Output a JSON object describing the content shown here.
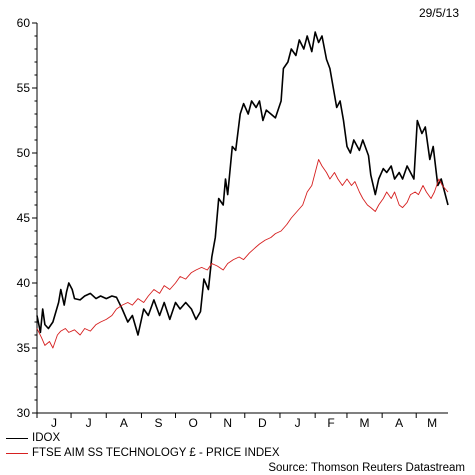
{
  "date_stamp": "29/5/13",
  "source": "Source: Thomson Reuters Datastream",
  "colors": {
    "idox": "#000000",
    "ftse": "#d62020",
    "axis": "#000000"
  },
  "chart_data": {
    "type": "line",
    "title": "",
    "xlabel": "",
    "ylabel": "",
    "x_range": [
      "2012-06-01",
      "2013-05-29"
    ],
    "ylim": [
      30,
      60
    ],
    "y_ticks": [
      30,
      35,
      40,
      45,
      50,
      55,
      60
    ],
    "y_tick_labels": [
      "30",
      "35",
      "40",
      "45",
      "50",
      "55",
      "60"
    ],
    "month_labels": [
      "J",
      "J",
      "A",
      "S",
      "O",
      "N",
      "D",
      "J",
      "F",
      "M",
      "A",
      "M"
    ],
    "grid": false,
    "legend_position": "bottom-left",
    "series": [
      {
        "name": "IDOX",
        "color": "#000000",
        "points": [
          [
            "2012-06-01",
            37.5
          ],
          [
            "2012-06-04",
            36.2
          ],
          [
            "2012-06-06",
            38.0
          ],
          [
            "2012-06-08",
            36.8
          ],
          [
            "2012-06-11",
            36.5
          ],
          [
            "2012-06-15",
            37.0
          ],
          [
            "2012-06-20",
            38.5
          ],
          [
            "2012-06-22",
            39.5
          ],
          [
            "2012-06-25",
            38.3
          ],
          [
            "2012-06-27",
            39.3
          ],
          [
            "2012-06-29",
            40.0
          ],
          [
            "2012-07-02",
            39.5
          ],
          [
            "2012-07-04",
            38.8
          ],
          [
            "2012-07-09",
            38.7
          ],
          [
            "2012-07-13",
            39.0
          ],
          [
            "2012-07-18",
            39.2
          ],
          [
            "2012-07-23",
            38.8
          ],
          [
            "2012-07-27",
            39.0
          ],
          [
            "2012-08-01",
            38.8
          ],
          [
            "2012-08-06",
            39.0
          ],
          [
            "2012-08-10",
            38.9
          ],
          [
            "2012-08-15",
            38.0
          ],
          [
            "2012-08-20",
            37.0
          ],
          [
            "2012-08-24",
            37.5
          ],
          [
            "2012-08-29",
            36.0
          ],
          [
            "2012-09-03",
            38.0
          ],
          [
            "2012-09-07",
            37.5
          ],
          [
            "2012-09-12",
            38.7
          ],
          [
            "2012-09-17",
            37.5
          ],
          [
            "2012-09-21",
            38.5
          ],
          [
            "2012-09-26",
            37.2
          ],
          [
            "2012-10-01",
            38.5
          ],
          [
            "2012-10-05",
            38.0
          ],
          [
            "2012-10-10",
            38.5
          ],
          [
            "2012-10-15",
            38.0
          ],
          [
            "2012-10-19",
            37.2
          ],
          [
            "2012-10-23",
            37.8
          ],
          [
            "2012-10-26",
            40.3
          ],
          [
            "2012-10-30",
            39.5
          ],
          [
            "2012-11-02",
            42.0
          ],
          [
            "2012-11-05",
            43.5
          ],
          [
            "2012-11-08",
            46.5
          ],
          [
            "2012-11-12",
            46.0
          ],
          [
            "2012-11-14",
            48.0
          ],
          [
            "2012-11-16",
            46.8
          ],
          [
            "2012-11-20",
            50.5
          ],
          [
            "2012-11-23",
            50.2
          ],
          [
            "2012-11-27",
            53.0
          ],
          [
            "2012-11-30",
            53.8
          ],
          [
            "2012-12-04",
            53.0
          ],
          [
            "2012-12-07",
            54.0
          ],
          [
            "2012-12-11",
            53.5
          ],
          [
            "2012-12-14",
            54.0
          ],
          [
            "2012-12-17",
            52.5
          ],
          [
            "2012-12-20",
            53.3
          ],
          [
            "2012-12-24",
            53.0
          ],
          [
            "2012-12-28",
            52.7
          ],
          [
            "2013-01-02",
            54.0
          ],
          [
            "2013-01-04",
            56.5
          ],
          [
            "2013-01-08",
            57.0
          ],
          [
            "2013-01-11",
            58.0
          ],
          [
            "2013-01-15",
            57.5
          ],
          [
            "2013-01-18",
            58.7
          ],
          [
            "2013-01-22",
            58.0
          ],
          [
            "2013-01-25",
            59.0
          ],
          [
            "2013-01-29",
            57.8
          ],
          [
            "2013-02-01",
            59.3
          ],
          [
            "2013-02-04",
            58.5
          ],
          [
            "2013-02-07",
            59.0
          ],
          [
            "2013-02-11",
            57.2
          ],
          [
            "2013-02-14",
            56.5
          ],
          [
            "2013-02-17",
            55.0
          ],
          [
            "2013-02-20",
            53.5
          ],
          [
            "2013-02-23",
            54.0
          ],
          [
            "2013-02-26",
            52.5
          ],
          [
            "2013-03-01",
            50.5
          ],
          [
            "2013-03-04",
            50.0
          ],
          [
            "2013-03-07",
            51.0
          ],
          [
            "2013-03-12",
            50.2
          ],
          [
            "2013-03-15",
            51.0
          ],
          [
            "2013-03-20",
            49.8
          ],
          [
            "2013-03-22",
            48.3
          ],
          [
            "2013-03-26",
            46.8
          ],
          [
            "2013-03-29",
            48.0
          ],
          [
            "2013-04-02",
            48.8
          ],
          [
            "2013-04-05",
            48.5
          ],
          [
            "2013-04-09",
            49.0
          ],
          [
            "2013-04-12",
            48.0
          ],
          [
            "2013-04-16",
            48.5
          ],
          [
            "2013-04-19",
            48.0
          ],
          [
            "2013-04-23",
            49.0
          ],
          [
            "2013-04-26",
            48.5
          ],
          [
            "2013-04-29",
            48.0
          ],
          [
            "2013-05-02",
            52.5
          ],
          [
            "2013-05-06",
            51.5
          ],
          [
            "2013-05-09",
            52.0
          ],
          [
            "2013-05-13",
            49.5
          ],
          [
            "2013-05-16",
            50.5
          ],
          [
            "2013-05-20",
            47.5
          ],
          [
            "2013-05-23",
            48.0
          ],
          [
            "2013-05-26",
            47.0
          ],
          [
            "2013-05-29",
            46.0
          ]
        ]
      },
      {
        "name": "FTSE AIM SS TECHNOLOGY £ - PRICE INDEX",
        "color": "#d62020",
        "points": [
          [
            "2012-06-01",
            36.5
          ],
          [
            "2012-06-05",
            35.8
          ],
          [
            "2012-06-08",
            35.2
          ],
          [
            "2012-06-12",
            35.5
          ],
          [
            "2012-06-15",
            35.0
          ],
          [
            "2012-06-19",
            36.0
          ],
          [
            "2012-06-22",
            36.3
          ],
          [
            "2012-06-26",
            36.5
          ],
          [
            "2012-06-29",
            36.2
          ],
          [
            "2012-07-04",
            36.4
          ],
          [
            "2012-07-09",
            36.0
          ],
          [
            "2012-07-13",
            36.5
          ],
          [
            "2012-07-18",
            36.3
          ],
          [
            "2012-07-23",
            36.8
          ],
          [
            "2012-07-27",
            37.0
          ],
          [
            "2012-08-01",
            37.2
          ],
          [
            "2012-08-06",
            37.5
          ],
          [
            "2012-08-10",
            38.0
          ],
          [
            "2012-08-15",
            38.3
          ],
          [
            "2012-08-20",
            38.5
          ],
          [
            "2012-08-24",
            38.3
          ],
          [
            "2012-08-29",
            38.8
          ],
          [
            "2012-09-03",
            38.5
          ],
          [
            "2012-09-07",
            39.0
          ],
          [
            "2012-09-12",
            39.5
          ],
          [
            "2012-09-17",
            39.2
          ],
          [
            "2012-09-21",
            39.8
          ],
          [
            "2012-09-26",
            39.5
          ],
          [
            "2012-10-01",
            40.0
          ],
          [
            "2012-10-05",
            40.5
          ],
          [
            "2012-10-10",
            40.3
          ],
          [
            "2012-10-15",
            40.8
          ],
          [
            "2012-10-19",
            41.0
          ],
          [
            "2012-10-24",
            41.2
          ],
          [
            "2012-10-29",
            41.0
          ],
          [
            "2012-11-02",
            41.5
          ],
          [
            "2012-11-07",
            41.3
          ],
          [
            "2012-11-12",
            41.0
          ],
          [
            "2012-11-16",
            41.5
          ],
          [
            "2012-11-21",
            41.8
          ],
          [
            "2012-11-26",
            42.0
          ],
          [
            "2012-11-30",
            41.8
          ],
          [
            "2012-12-05",
            42.3
          ],
          [
            "2012-12-10",
            42.7
          ],
          [
            "2012-12-14",
            43.0
          ],
          [
            "2012-12-19",
            43.3
          ],
          [
            "2012-12-24",
            43.5
          ],
          [
            "2012-12-28",
            43.8
          ],
          [
            "2013-01-02",
            44.0
          ],
          [
            "2013-01-07",
            44.5
          ],
          [
            "2013-01-11",
            45.0
          ],
          [
            "2013-01-16",
            45.5
          ],
          [
            "2013-01-21",
            46.0
          ],
          [
            "2013-01-25",
            47.0
          ],
          [
            "2013-01-29",
            47.5
          ],
          [
            "2013-02-01",
            48.5
          ],
          [
            "2013-02-04",
            49.5
          ],
          [
            "2013-02-07",
            49.0
          ],
          [
            "2013-02-11",
            48.5
          ],
          [
            "2013-02-14",
            48.0
          ],
          [
            "2013-02-18",
            48.5
          ],
          [
            "2013-02-21",
            48.0
          ],
          [
            "2013-02-25",
            47.5
          ],
          [
            "2013-03-01",
            48.0
          ],
          [
            "2013-03-05",
            47.5
          ],
          [
            "2013-03-08",
            47.8
          ],
          [
            "2013-03-12",
            47.0
          ],
          [
            "2013-03-15",
            46.5
          ],
          [
            "2013-03-19",
            46.0
          ],
          [
            "2013-03-22",
            45.8
          ],
          [
            "2013-03-26",
            45.5
          ],
          [
            "2013-03-29",
            46.0
          ],
          [
            "2013-04-02",
            46.5
          ],
          [
            "2013-04-05",
            47.0
          ],
          [
            "2013-04-09",
            46.5
          ],
          [
            "2013-04-12",
            47.0
          ],
          [
            "2013-04-16",
            46.0
          ],
          [
            "2013-04-19",
            45.8
          ],
          [
            "2013-04-23",
            46.2
          ],
          [
            "2013-04-26",
            46.8
          ],
          [
            "2013-04-30",
            47.0
          ],
          [
            "2013-05-03",
            46.8
          ],
          [
            "2013-05-07",
            47.5
          ],
          [
            "2013-05-10",
            47.0
          ],
          [
            "2013-05-14",
            46.5
          ],
          [
            "2013-05-17",
            47.0
          ],
          [
            "2013-05-21",
            48.0
          ],
          [
            "2013-05-24",
            47.5
          ],
          [
            "2013-05-29",
            47.0
          ]
        ]
      }
    ]
  }
}
